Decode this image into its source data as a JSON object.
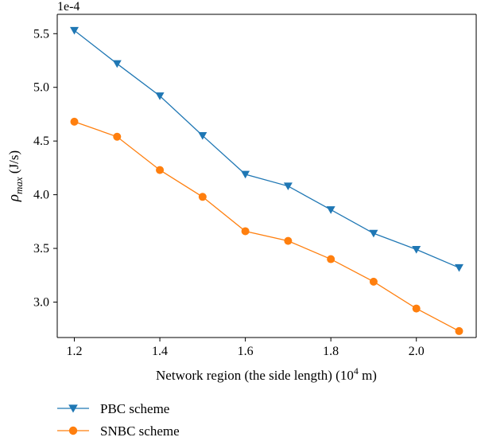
{
  "chart_data": {
    "type": "line",
    "x": [
      1.2,
      1.3,
      1.4,
      1.5,
      1.6,
      1.7,
      1.8,
      1.9,
      2.0,
      2.1
    ],
    "series": [
      {
        "name": "PBC scheme",
        "color": "#1f77b4",
        "marker": "triangle-down",
        "values": [
          5.53,
          5.22,
          4.92,
          4.55,
          4.19,
          4.08,
          3.86,
          3.64,
          3.49,
          3.32
        ]
      },
      {
        "name": "SNBC scheme",
        "color": "#ff7f0e",
        "marker": "circle",
        "values": [
          4.68,
          4.54,
          4.23,
          3.98,
          3.66,
          3.57,
          3.4,
          3.19,
          2.94,
          2.73
        ]
      }
    ],
    "xlim": [
      1.16,
      2.14
    ],
    "ylim": [
      2.67,
      5.68
    ],
    "xticks": [
      "1.2",
      "1.4",
      "1.6",
      "1.8",
      "2.0"
    ],
    "xtick_values": [
      1.2,
      1.4,
      1.6,
      1.8,
      2.0
    ],
    "yticks": [
      "3.0",
      "3.5",
      "4.0",
      "4.5",
      "5.0",
      "5.5"
    ],
    "ytick_values": [
      3.0,
      3.5,
      4.0,
      4.5,
      5.0,
      5.5
    ],
    "offset_text": "1e-4",
    "ylabel_main": "ρ",
    "ylabel_sub": "max",
    "ylabel_unit": " (J/s)",
    "xlabel_pre": "Network region (the side length) (10",
    "xlabel_sup": "4",
    "xlabel_post": " m)",
    "grid": false,
    "legend_placement": "bottom-left, below plot"
  }
}
